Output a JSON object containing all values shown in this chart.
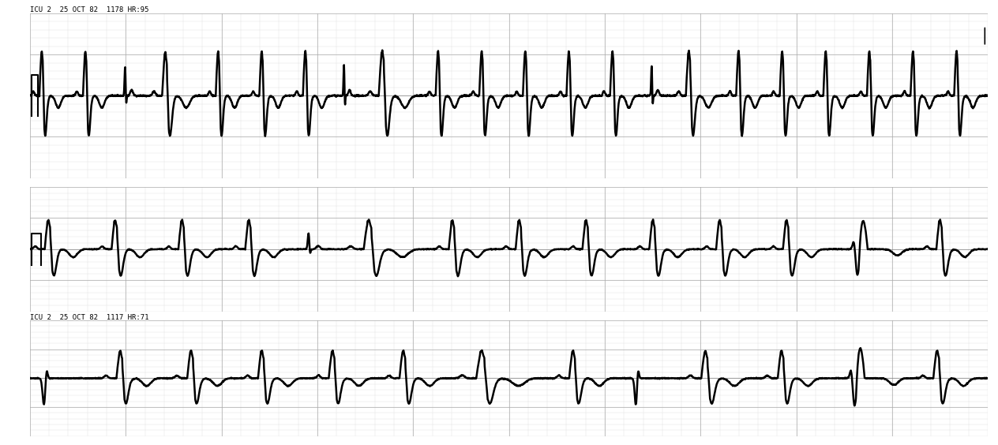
{
  "fig_width": 12.64,
  "fig_height": 5.64,
  "dpi": 100,
  "bg_color": "#ffffff",
  "grid_major_color": "#aaaaaa",
  "grid_minor_color": "#cccccc",
  "line_color": "#000000",
  "line_width": 1.8,
  "text_color": "#000000",
  "label1": "ICU 2  25 OCT 82  1178 HR:95",
  "label2": "ICU 2  25 OCT 82  1117 HR:71",
  "sample_rate": 250,
  "row1_ylim": [
    -1.5,
    1.5
  ],
  "row2_ylim": [
    -1.8,
    1.8
  ],
  "row3_ylim": [
    -1.5,
    1.5
  ]
}
